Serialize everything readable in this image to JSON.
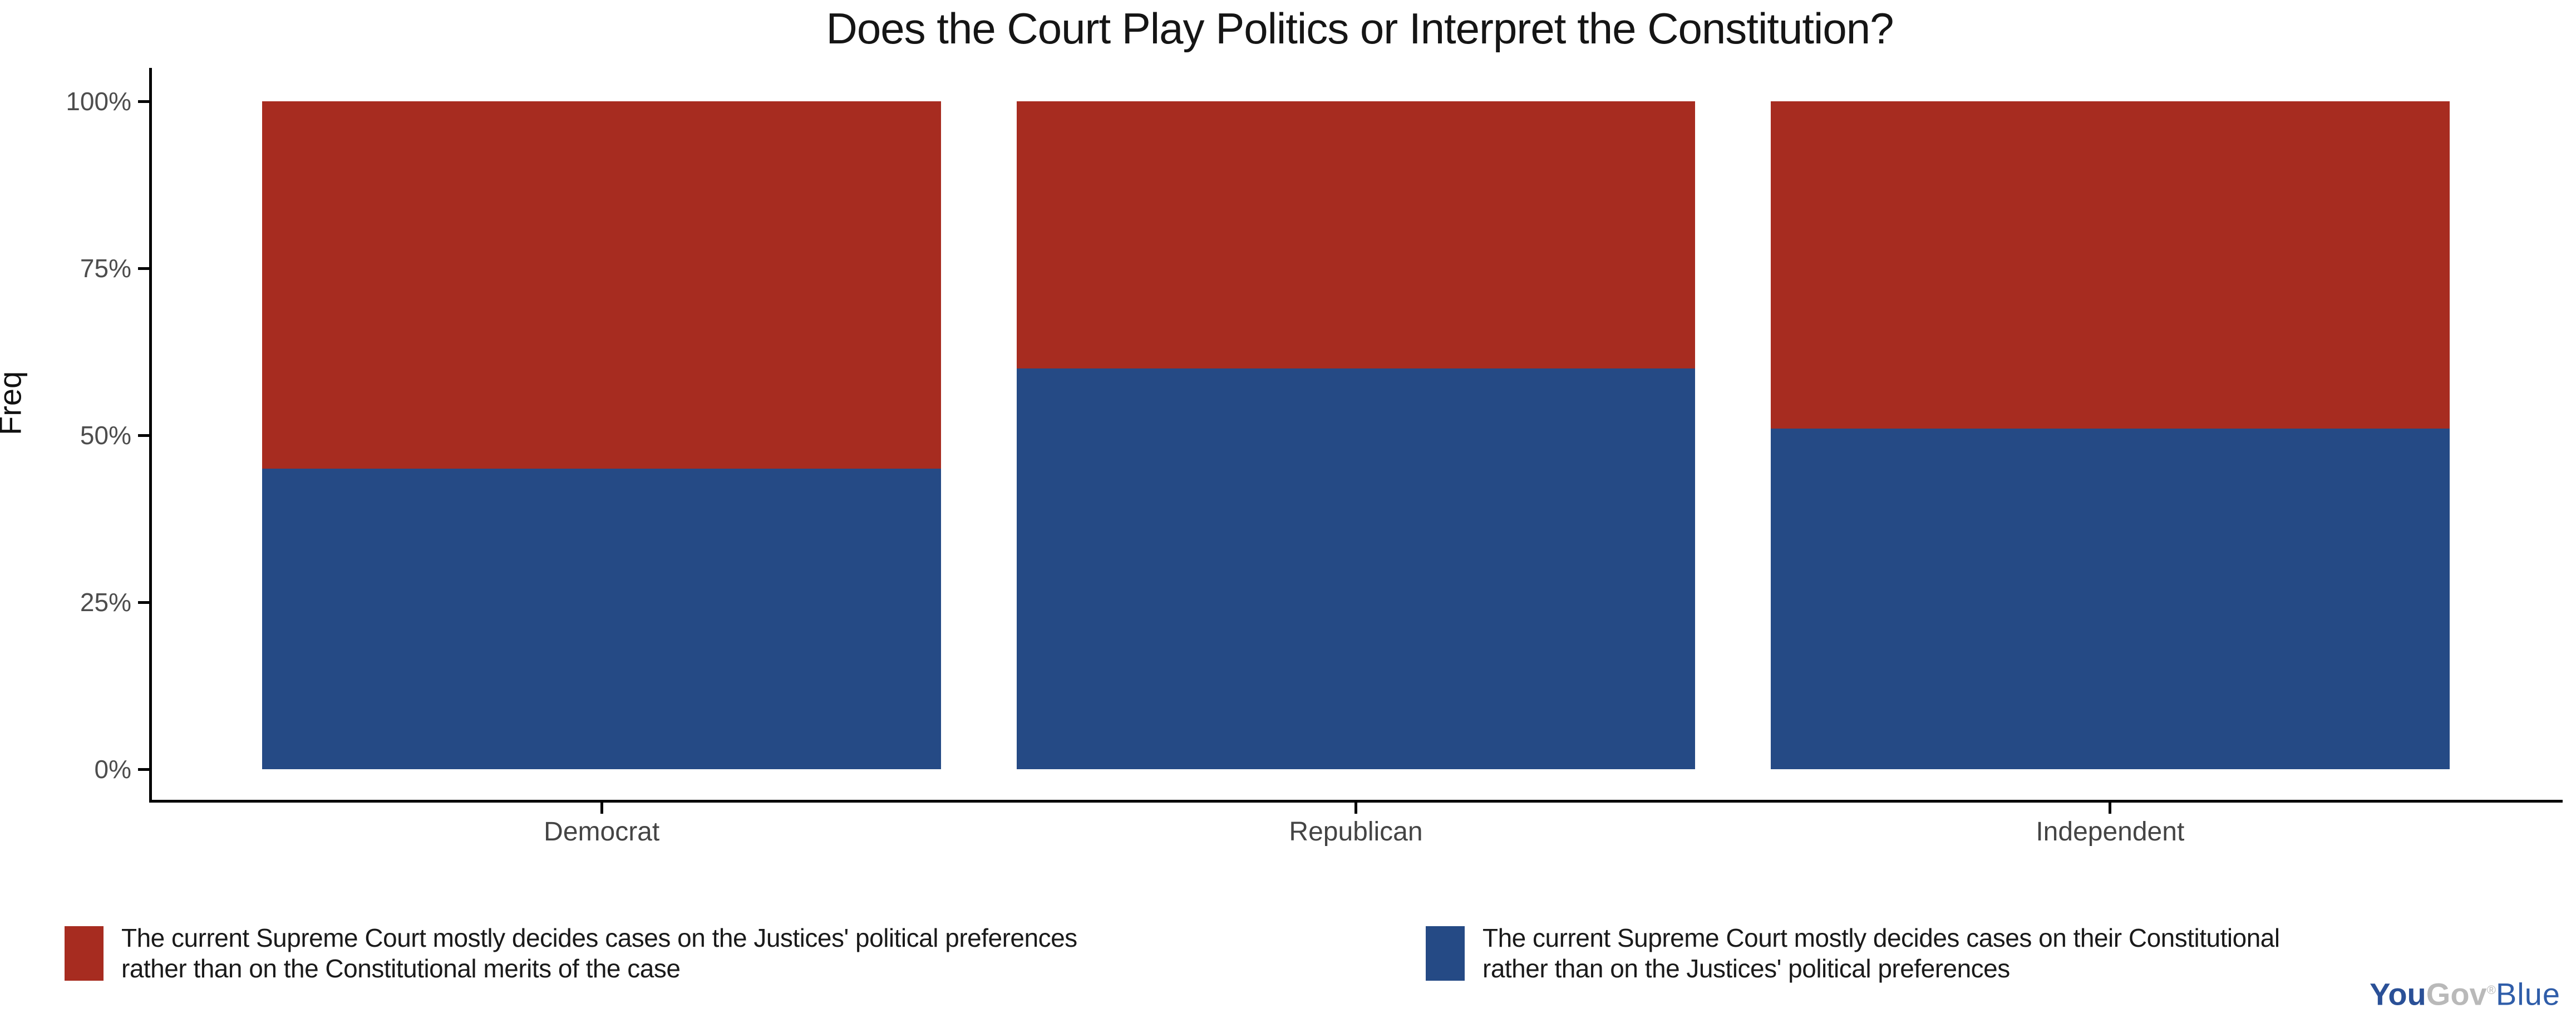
{
  "chart_data": {
    "type": "bar",
    "stacked": true,
    "title": "Does the Court Play Politics or Interpret the Constitution?",
    "xlabel": "",
    "ylabel": "Freq",
    "categories": [
      "Democrat",
      "Republican",
      "Independent"
    ],
    "series": [
      {
        "name": "The current Supreme Court mostly decides cases on the Justices' political preferences rather than on the Constitutional merits of the case",
        "legend_lines": [
          "The current Supreme Court mostly decides cases on the Justices' political preferences",
          "rather than on the Constitutional merits of the case"
        ],
        "color": "#A72C20",
        "values": [
          55,
          40,
          49
        ]
      },
      {
        "name": "The current Supreme Court mostly decides cases on their Constitutional rather than on the Justices' political preferences",
        "legend_lines": [
          "The current Supreme Court mostly decides cases on their Constitutional",
          "rather than on the Justices' political preferences"
        ],
        "color": "#254A85",
        "values": [
          45,
          60,
          51
        ]
      }
    ],
    "y_ticks": [
      "0%",
      "25%",
      "50%",
      "75%",
      "100%"
    ],
    "y_tick_values": [
      0,
      25,
      50,
      75,
      100
    ],
    "ylim": [
      0,
      100
    ],
    "grid": false,
    "legend_position": "bottom"
  },
  "colors": {
    "axis_line": "#000000",
    "tick_text": "#4D4D4D",
    "title_text": "#151515",
    "bar_red": "#A72C20",
    "bar_blue": "#254A85",
    "logo_you": "#2A5097",
    "logo_gov": "#B9B9B9",
    "logo_blue": "#2F5DA9"
  },
  "branding": {
    "you": "You",
    "gov": "Gov",
    "registered": "®",
    "blue": "Blue"
  }
}
